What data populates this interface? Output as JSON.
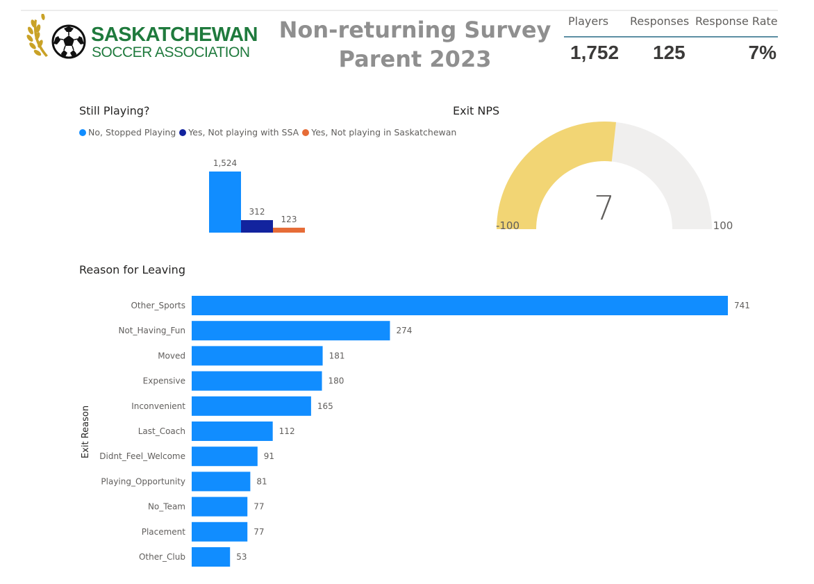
{
  "header": {
    "logo": {
      "line1": "SASKATCHEWAN",
      "line2": "SOCCER ASSOCIATION",
      "colors": {
        "text": "#1f7a3d",
        "wheat": "#c9a227"
      }
    },
    "title_line1": "Non-returning Survey",
    "title_line2": "Parent 2023"
  },
  "kpis": {
    "players_label": "Players",
    "responses_label": "Responses",
    "rate_label": "Response Rate",
    "players_value": "1,752",
    "responses_value": "125",
    "rate_value": "7%"
  },
  "chart_data": [
    {
      "type": "bar",
      "title": "Still Playing?",
      "series": [
        {
          "name": "No, Stopped Playing",
          "values": [
            1524
          ],
          "color": "#118dff"
        },
        {
          "name": "Yes, Not playing with SSA",
          "values": [
            312
          ],
          "color": "#12239e"
        },
        {
          "name": "Yes, Not playing in Saskatchewan",
          "values": [
            123
          ],
          "color": "#e66c37"
        }
      ],
      "data_labels": [
        "1,524",
        "312",
        "123"
      ],
      "legend_position": "top-left",
      "ylim": [
        0,
        1524
      ],
      "grid": false
    },
    {
      "type": "gauge",
      "title": "Exit NPS",
      "value": 7,
      "value_label": "7",
      "min": -100,
      "max": 100,
      "min_label": "-100",
      "max_label": "100",
      "fill_color": "#f2d574",
      "track_color": "#f0efee"
    },
    {
      "type": "bar",
      "orientation": "horizontal",
      "title": "Reason for Leaving",
      "ylabel": "Exit Reason",
      "xlabel": "",
      "categories": [
        "Other_Sports",
        "Not_Having_Fun",
        "Moved",
        "Expensive",
        "Inconvenient",
        "Last_Coach",
        "Didnt_Feel_Welcome",
        "Playing_Opportunity",
        "No_Team",
        "Placement",
        "Other_Club"
      ],
      "values": [
        741,
        274,
        181,
        180,
        165,
        112,
        91,
        81,
        77,
        77,
        53
      ],
      "color": "#118dff",
      "xlim": [
        0,
        741
      ],
      "grid": false
    }
  ]
}
